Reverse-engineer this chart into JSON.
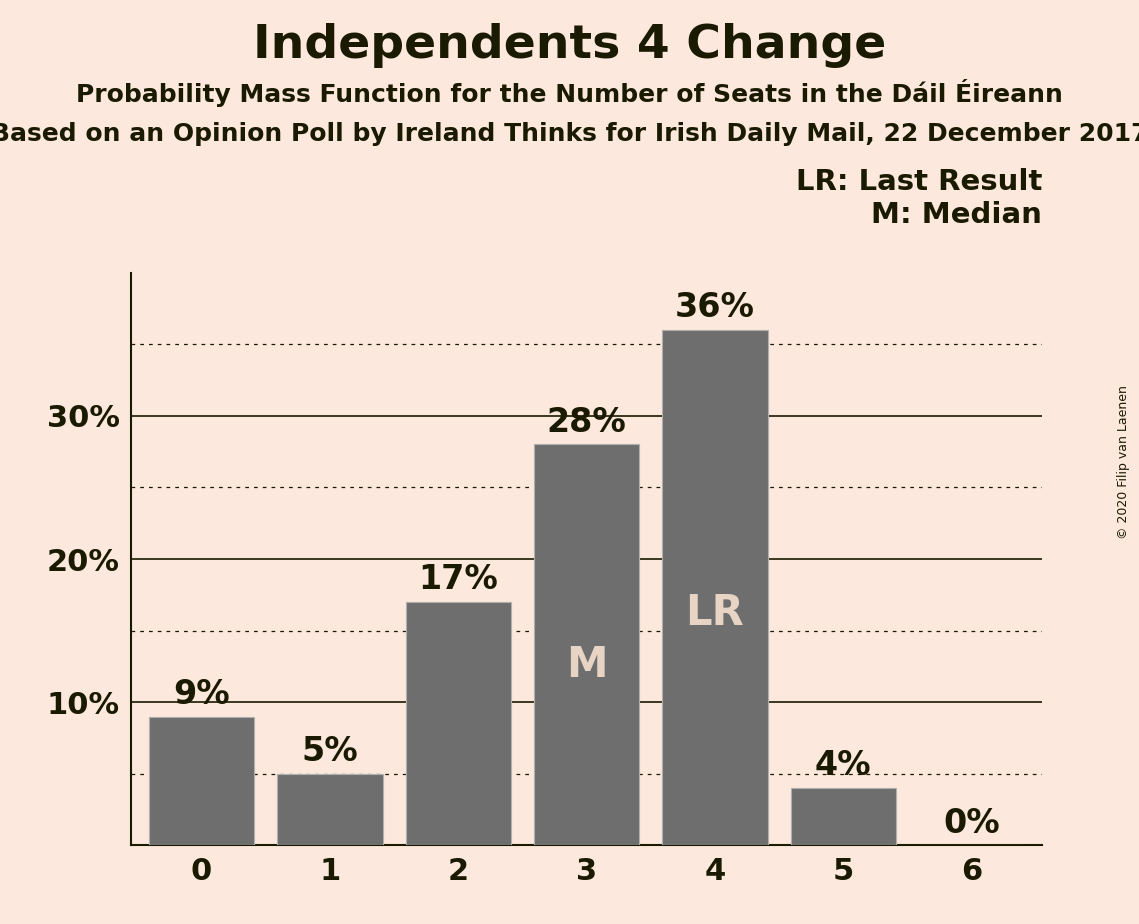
{
  "title": "Independents 4 Change",
  "subtitle1": "Probability Mass Function for the Number of Seats in the Dáil Éireann",
  "subtitle2": "Based on an Opinion Poll by Ireland Thinks for Irish Daily Mail, 22 December 2017",
  "copyright": "© 2020 Filip van Laenen",
  "categories": [
    0,
    1,
    2,
    3,
    4,
    5,
    6
  ],
  "values": [
    9,
    5,
    17,
    28,
    36,
    4,
    0
  ],
  "bar_color": "#6e6e6e",
  "background_color": "#fce8dc",
  "text_color": "#1a1a00",
  "bar_label_color_inside": "#e8d4c4",
  "median_seat": 3,
  "last_result_seat": 4,
  "legend_lr": "LR: Last Result",
  "legend_m": "M: Median",
  "ylim": [
    0,
    40
  ],
  "title_fontsize": 34,
  "subtitle_fontsize": 18,
  "tick_fontsize": 22,
  "bar_label_fontsize": 24,
  "inside_label_fontsize": 30,
  "legend_fontsize": 21,
  "copyright_fontsize": 9
}
